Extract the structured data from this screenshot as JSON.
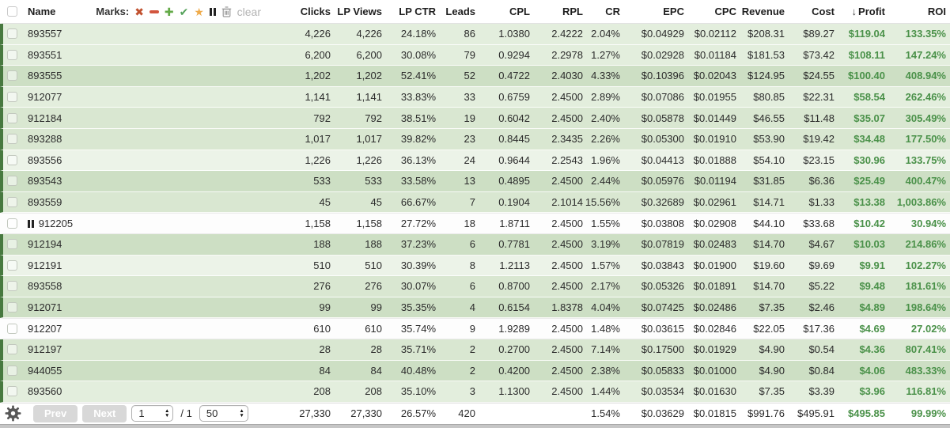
{
  "header": {
    "name_label": "Name",
    "marks": {
      "label": "Marks:",
      "clear_label": "clear",
      "icons": [
        "x-mark",
        "minus-mark",
        "plus-mark",
        "check-mark",
        "star-mark",
        "pause-mark",
        "trash-mark"
      ]
    },
    "sort": {
      "column": "profit",
      "direction": "desc",
      "icon": "↓"
    },
    "columns": [
      {
        "key": "clicks",
        "label": "Clicks"
      },
      {
        "key": "lp_views",
        "label": "LP Views"
      },
      {
        "key": "lp_ctr",
        "label": "LP CTR"
      },
      {
        "key": "leads",
        "label": "Leads"
      },
      {
        "key": "cpl",
        "label": "CPL"
      },
      {
        "key": "rpl",
        "label": "RPL"
      },
      {
        "key": "cr",
        "label": "CR"
      },
      {
        "key": "epc",
        "label": "EPC"
      },
      {
        "key": "cpc",
        "label": "CPC"
      },
      {
        "key": "revenue",
        "label": "Revenue"
      },
      {
        "key": "cost",
        "label": "Cost"
      },
      {
        "key": "profit",
        "label": "Profit",
        "sorted": true
      },
      {
        "key": "roi",
        "label": "ROI"
      }
    ]
  },
  "colors": {
    "profit_green": "#4a9149",
    "row_stripe": "#47793f",
    "mark_x": "#c1512f",
    "mark_minus": "#d2553e",
    "mark_plus": "#63aa47",
    "mark_check": "#55a25b",
    "mark_star": "#efab4b",
    "mark_pause": "#222222",
    "mark_trash": "#999999",
    "tint_xlight": "#ecf3e8",
    "tint_light": "#e3eedd",
    "tint_medium": "#d9e7d1",
    "tint_dark": "#cddfc4",
    "tint_white": "#fdfdfd"
  },
  "rows": [
    {
      "name": "893557",
      "mark": "",
      "tint": "light",
      "clicks": "4,226",
      "lp_views": "4,226",
      "lp_ctr": "24.18%",
      "leads": "86",
      "cpl": "1.0380",
      "rpl": "2.4222",
      "cr": "2.04%",
      "epc": "$0.04929",
      "cpc": "$0.02112",
      "revenue": "$208.31",
      "cost": "$89.27",
      "profit": "$119.04",
      "roi": "133.35%"
    },
    {
      "name": "893551",
      "mark": "",
      "tint": "light",
      "clicks": "6,200",
      "lp_views": "6,200",
      "lp_ctr": "30.08%",
      "leads": "79",
      "cpl": "0.9294",
      "rpl": "2.2978",
      "cr": "1.27%",
      "epc": "$0.02928",
      "cpc": "$0.01184",
      "revenue": "$181.53",
      "cost": "$73.42",
      "profit": "$108.11",
      "roi": "147.24%"
    },
    {
      "name": "893555",
      "mark": "",
      "tint": "dark",
      "clicks": "1,202",
      "lp_views": "1,202",
      "lp_ctr": "52.41%",
      "leads": "52",
      "cpl": "0.4722",
      "rpl": "2.4030",
      "cr": "4.33%",
      "epc": "$0.10396",
      "cpc": "$0.02043",
      "revenue": "$124.95",
      "cost": "$24.55",
      "profit": "$100.40",
      "roi": "408.94%"
    },
    {
      "name": "912077",
      "mark": "",
      "tint": "light",
      "clicks": "1,141",
      "lp_views": "1,141",
      "lp_ctr": "33.83%",
      "leads": "33",
      "cpl": "0.6759",
      "rpl": "2.4500",
      "cr": "2.89%",
      "epc": "$0.07086",
      "cpc": "$0.01955",
      "revenue": "$80.85",
      "cost": "$22.31",
      "profit": "$58.54",
      "roi": "262.46%"
    },
    {
      "name": "912184",
      "mark": "",
      "tint": "medium",
      "clicks": "792",
      "lp_views": "792",
      "lp_ctr": "38.51%",
      "leads": "19",
      "cpl": "0.6042",
      "rpl": "2.4500",
      "cr": "2.40%",
      "epc": "$0.05878",
      "cpc": "$0.01449",
      "revenue": "$46.55",
      "cost": "$11.48",
      "profit": "$35.07",
      "roi": "305.49%"
    },
    {
      "name": "893288",
      "mark": "",
      "tint": "medium",
      "clicks": "1,017",
      "lp_views": "1,017",
      "lp_ctr": "39.82%",
      "leads": "23",
      "cpl": "0.8445",
      "rpl": "2.3435",
      "cr": "2.26%",
      "epc": "$0.05300",
      "cpc": "$0.01910",
      "revenue": "$53.90",
      "cost": "$19.42",
      "profit": "$34.48",
      "roi": "177.50%"
    },
    {
      "name": "893556",
      "mark": "",
      "tint": "xlight",
      "clicks": "1,226",
      "lp_views": "1,226",
      "lp_ctr": "36.13%",
      "leads": "24",
      "cpl": "0.9644",
      "rpl": "2.2543",
      "cr": "1.96%",
      "epc": "$0.04413",
      "cpc": "$0.01888",
      "revenue": "$54.10",
      "cost": "$23.15",
      "profit": "$30.96",
      "roi": "133.75%"
    },
    {
      "name": "893543",
      "mark": "",
      "tint": "dark",
      "clicks": "533",
      "lp_views": "533",
      "lp_ctr": "33.58%",
      "leads": "13",
      "cpl": "0.4895",
      "rpl": "2.4500",
      "cr": "2.44%",
      "epc": "$0.05976",
      "cpc": "$0.01194",
      "revenue": "$31.85",
      "cost": "$6.36",
      "profit": "$25.49",
      "roi": "400.47%"
    },
    {
      "name": "893559",
      "mark": "",
      "tint": "medium",
      "clicks": "45",
      "lp_views": "45",
      "lp_ctr": "66.67%",
      "leads": "7",
      "cpl": "0.1904",
      "rpl": "2.1014",
      "cr": "15.56%",
      "epc": "$0.32689",
      "cpc": "$0.02961",
      "revenue": "$14.71",
      "cost": "$1.33",
      "profit": "$13.38",
      "roi": "1,003.86%"
    },
    {
      "name": "912205",
      "mark": "pause",
      "tint": "white",
      "clicks": "1,158",
      "lp_views": "1,158",
      "lp_ctr": "27.72%",
      "leads": "18",
      "cpl": "1.8711",
      "rpl": "2.4500",
      "cr": "1.55%",
      "epc": "$0.03808",
      "cpc": "$0.02908",
      "revenue": "$44.10",
      "cost": "$33.68",
      "profit": "$10.42",
      "roi": "30.94%"
    },
    {
      "name": "912194",
      "mark": "",
      "tint": "dark",
      "clicks": "188",
      "lp_views": "188",
      "lp_ctr": "37.23%",
      "leads": "6",
      "cpl": "0.7781",
      "rpl": "2.4500",
      "cr": "3.19%",
      "epc": "$0.07819",
      "cpc": "$0.02483",
      "revenue": "$14.70",
      "cost": "$4.67",
      "profit": "$10.03",
      "roi": "214.86%"
    },
    {
      "name": "912191",
      "mark": "",
      "tint": "xlight",
      "clicks": "510",
      "lp_views": "510",
      "lp_ctr": "30.39%",
      "leads": "8",
      "cpl": "1.2113",
      "rpl": "2.4500",
      "cr": "1.57%",
      "epc": "$0.03843",
      "cpc": "$0.01900",
      "revenue": "$19.60",
      "cost": "$9.69",
      "profit": "$9.91",
      "roi": "102.27%"
    },
    {
      "name": "893558",
      "mark": "",
      "tint": "medium",
      "clicks": "276",
      "lp_views": "276",
      "lp_ctr": "30.07%",
      "leads": "6",
      "cpl": "0.8700",
      "rpl": "2.4500",
      "cr": "2.17%",
      "epc": "$0.05326",
      "cpc": "$0.01891",
      "revenue": "$14.70",
      "cost": "$5.22",
      "profit": "$9.48",
      "roi": "181.61%"
    },
    {
      "name": "912071",
      "mark": "",
      "tint": "dark",
      "clicks": "99",
      "lp_views": "99",
      "lp_ctr": "35.35%",
      "leads": "4",
      "cpl": "0.6154",
      "rpl": "1.8378",
      "cr": "4.04%",
      "epc": "$0.07425",
      "cpc": "$0.02486",
      "revenue": "$7.35",
      "cost": "$2.46",
      "profit": "$4.89",
      "roi": "198.64%"
    },
    {
      "name": "912207",
      "mark": "",
      "tint": "white",
      "clicks": "610",
      "lp_views": "610",
      "lp_ctr": "35.74%",
      "leads": "9",
      "cpl": "1.9289",
      "rpl": "2.4500",
      "cr": "1.48%",
      "epc": "$0.03615",
      "cpc": "$0.02846",
      "revenue": "$22.05",
      "cost": "$17.36",
      "profit": "$4.69",
      "roi": "27.02%"
    },
    {
      "name": "912197",
      "mark": "",
      "tint": "medium",
      "clicks": "28",
      "lp_views": "28",
      "lp_ctr": "35.71%",
      "leads": "2",
      "cpl": "0.2700",
      "rpl": "2.4500",
      "cr": "7.14%",
      "epc": "$0.17500",
      "cpc": "$0.01929",
      "revenue": "$4.90",
      "cost": "$0.54",
      "profit": "$4.36",
      "roi": "807.41%"
    },
    {
      "name": "944055",
      "mark": "",
      "tint": "dark",
      "clicks": "84",
      "lp_views": "84",
      "lp_ctr": "40.48%",
      "leads": "2",
      "cpl": "0.4200",
      "rpl": "2.4500",
      "cr": "2.38%",
      "epc": "$0.05833",
      "cpc": "$0.01000",
      "revenue": "$4.90",
      "cost": "$0.84",
      "profit": "$4.06",
      "roi": "483.33%"
    },
    {
      "name": "893560",
      "mark": "",
      "tint": "light",
      "clicks": "208",
      "lp_views": "208",
      "lp_ctr": "35.10%",
      "leads": "3",
      "cpl": "1.1300",
      "rpl": "2.4500",
      "cr": "1.44%",
      "epc": "$0.03534",
      "cpc": "$0.01630",
      "revenue": "$7.35",
      "cost": "$3.39",
      "profit": "$3.96",
      "roi": "116.81%"
    }
  ],
  "totals": {
    "clicks": "27,330",
    "lp_views": "27,330",
    "lp_ctr": "26.57%",
    "leads": "420",
    "cpl": "",
    "rpl": "",
    "cr": "1.54%",
    "epc": "$0.03629",
    "cpc": "$0.01815",
    "revenue": "$991.76",
    "cost": "$495.91",
    "profit": "$495.85",
    "roi": "99.99%"
  },
  "pagination": {
    "prev_label": "Prev",
    "next_label": "Next",
    "current_page": "1",
    "page_count_label": "/ 1",
    "page_size": "50"
  }
}
